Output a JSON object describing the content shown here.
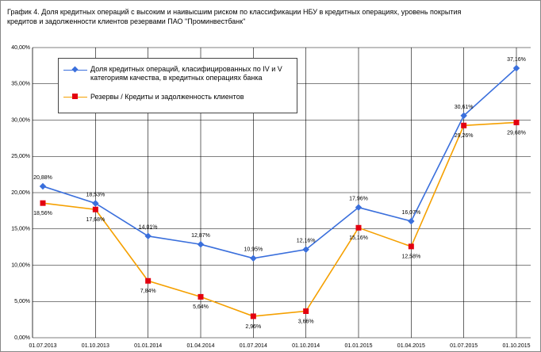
{
  "chart_data": {
    "type": "line",
    "title": "График 4. Доля кредитных операций с высоким и наивысшим риском по классификации НБУ в кредитных операциях, уровень покрытия кредитов и задолженности клиентов резервами ПАО \"Проминвестбанк\"",
    "categories": [
      "01.07.2013",
      "01.10.2013",
      "01.01.2014",
      "01.04.2014",
      "01.07.2014",
      "01.10.2014",
      "01.01.2015",
      "01.04.2015",
      "01.07.2015",
      "01.10.2015"
    ],
    "series": [
      {
        "name": "Доля кредитных операций, класифицированных по IV и V категориям качества, в кредитных операциях банка",
        "color": "#3a6fdc",
        "marker_color": "#3a6fdc",
        "values": [
          20.88,
          18.53,
          14.01,
          12.87,
          10.95,
          12.16,
          17.96,
          16.07,
          30.61,
          37.16
        ],
        "value_labels": [
          "20,88%",
          "18,53%",
          "14,01%",
          "12,87%",
          "10,95%",
          "12,16%",
          "17,96%",
          "16,07%",
          "30,61%",
          "37,16%"
        ]
      },
      {
        "name": "Резервы / Кредиты и задолженность клиентов",
        "color": "#f5a000",
        "marker_color": "#e3000f",
        "values": [
          18.56,
          17.68,
          7.84,
          5.64,
          2.96,
          3.66,
          15.16,
          12.58,
          29.26,
          29.68
        ],
        "value_labels": [
          "18,56%",
          "17,68%",
          "7,84%",
          "5,64%",
          "2,96%",
          "3,66%",
          "15,16%",
          "12,58%",
          "29,26%",
          "29,68%"
        ]
      }
    ],
    "ylim": [
      0,
      40
    ],
    "yticks": [
      {
        "value": 0,
        "label": "0,00%"
      },
      {
        "value": 5,
        "label": "5,00%"
      },
      {
        "value": 10,
        "label": "10,00%"
      },
      {
        "value": 15,
        "label": "15,00%"
      },
      {
        "value": 20,
        "label": "20,00%"
      },
      {
        "value": 25,
        "label": "25,00%"
      },
      {
        "value": 30,
        "label": "30,00%"
      },
      {
        "value": 35,
        "label": "35,00%"
      },
      {
        "value": 40,
        "label": "40,00%"
      }
    ],
    "grid": true
  }
}
